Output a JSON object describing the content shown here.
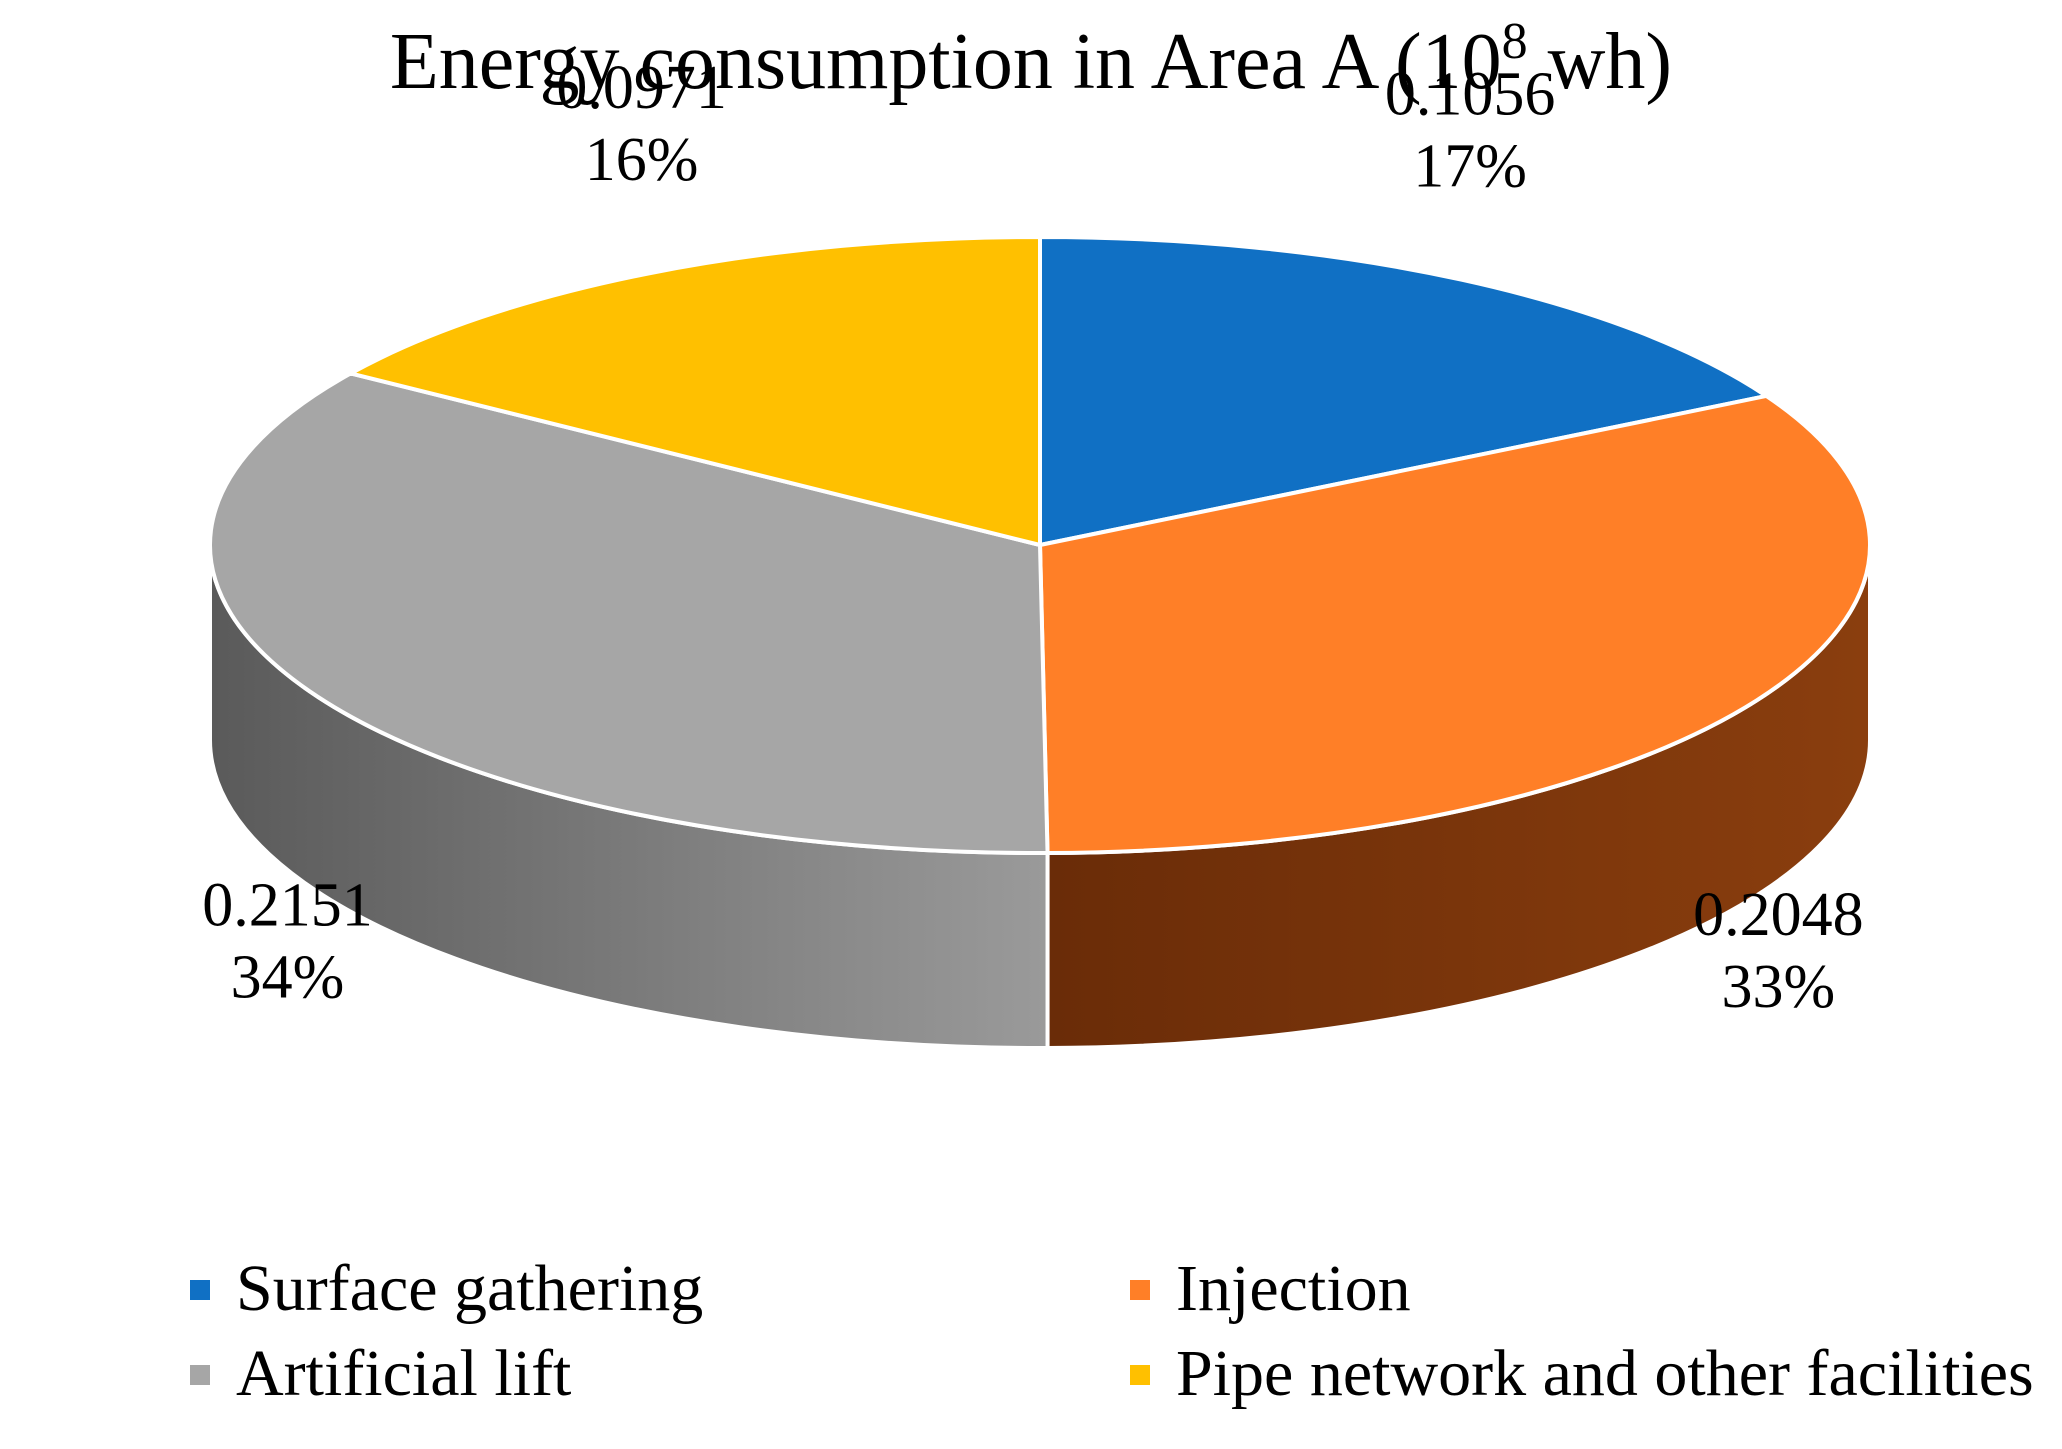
{
  "chart_data": {
    "type": "pie",
    "style": "3d",
    "title": {
      "prefix": "Energy consumption in Area A (10",
      "superscript": "8",
      "suffix": " wh)"
    },
    "start_angle_deg": 0,
    "direction": "clockwise",
    "slices": [
      {
        "name": "Surface gathering",
        "value": 0.1056,
        "value_label": "0.1056",
        "percent_label": "17%",
        "color": "#1070C4",
        "side_color": "#0B4E89",
        "side_color_dark": "#08365F"
      },
      {
        "name": "Injection",
        "value": 0.2048,
        "value_label": "0.2048",
        "percent_label": "33%",
        "color": "#FF7F27",
        "side_color": "#8A3E0E",
        "side_color_dark": "#6A2C08"
      },
      {
        "name": "Artificial lift",
        "value": 0.2151,
        "value_label": "0.2151",
        "percent_label": "34%",
        "color": "#A6A6A6",
        "side_color": "#9A9A9A",
        "side_color_dark": "#5A5A5A"
      },
      {
        "name": "Pipe network and other facilities",
        "value": 0.0971,
        "value_label": "0.0971",
        "percent_label": "16%",
        "color": "#FFC000",
        "side_color": "#B38600",
        "side_color_dark": "#7F5F00"
      }
    ],
    "legend": {
      "position": "bottom",
      "columns": 2
    }
  }
}
